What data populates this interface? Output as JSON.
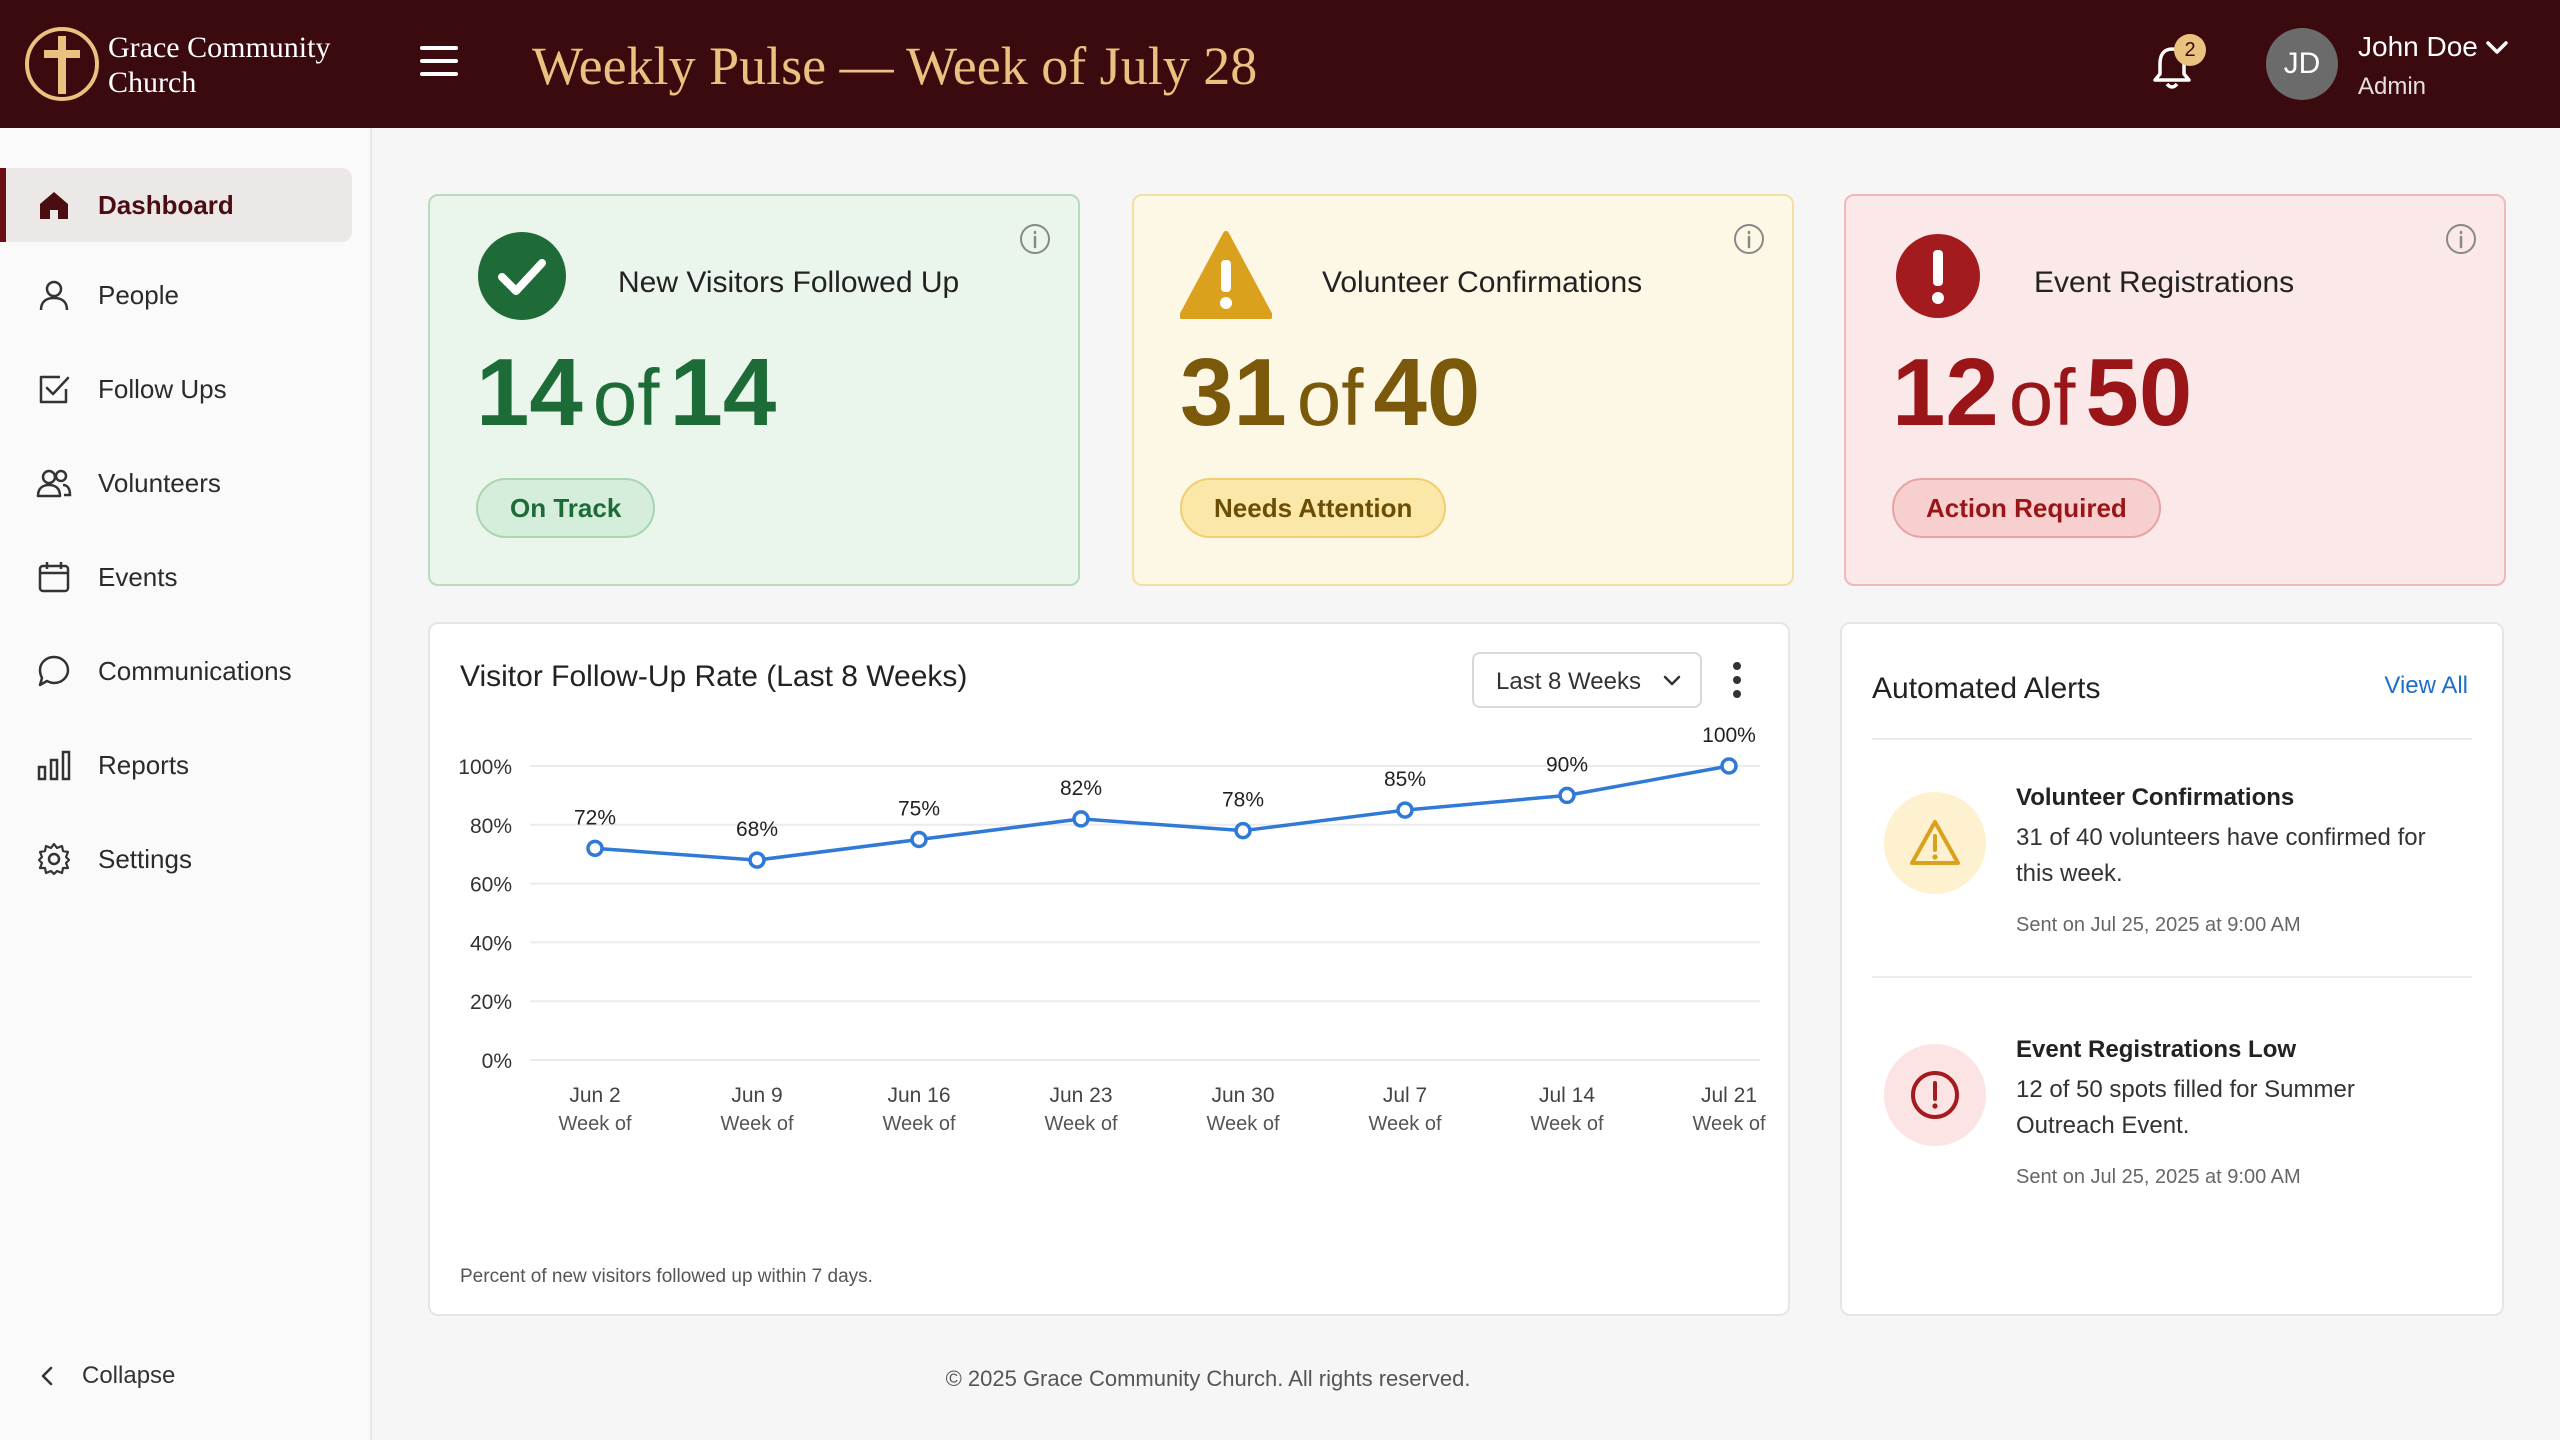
{
  "header": {
    "church_name": "Grace Community Church",
    "page_title": "Weekly Pulse — Week of July 28",
    "notification_count": "2",
    "user": {
      "initials": "JD",
      "name": "John Doe",
      "role": "Admin"
    }
  },
  "sidebar": {
    "items": [
      {
        "label": "Dashboard",
        "icon": "home-icon",
        "active": true
      },
      {
        "label": "People",
        "icon": "person-icon"
      },
      {
        "label": "Follow Ups",
        "icon": "checkbox-icon"
      },
      {
        "label": "Volunteers",
        "icon": "users-icon"
      },
      {
        "label": "Events",
        "icon": "calendar-icon"
      },
      {
        "label": "Communications",
        "icon": "chat-bubble-icon"
      },
      {
        "label": "Reports",
        "icon": "bar-chart-icon"
      },
      {
        "label": "Settings",
        "icon": "gear-icon"
      }
    ],
    "collapse_label": "Collapse"
  },
  "cards": [
    {
      "title": "New Visitors Followed Up",
      "current": "14",
      "of": "of",
      "total": "14",
      "status": "On Track",
      "color": "#1d6b36",
      "icon": "check-circle-icon"
    },
    {
      "title": "Volunteer Confirmations",
      "current": "31",
      "of": "of",
      "total": "40",
      "status": "Needs Attention",
      "color": "#d9a11e",
      "icon": "warning-triangle-icon"
    },
    {
      "title": "Event Registrations",
      "current": "12",
      "of": "of",
      "total": "50",
      "status": "Action Required",
      "color": "#a31b1f",
      "icon": "exclamation-circle-icon"
    }
  ],
  "chart": {
    "title": "Visitor Follow-Up Rate (Last 8 Weeks)",
    "range_selected": "Last 8 Weeks",
    "caption": "Percent of new visitors followed up within 7 days."
  },
  "chart_data": {
    "type": "line",
    "categories": [
      "Jun 2",
      "Jun 9",
      "Jun 16",
      "Jun 23",
      "Jun 30",
      "Jul 7",
      "Jul 14",
      "Jul 21"
    ],
    "category_sublabel": "Week of",
    "values": [
      72,
      68,
      75,
      82,
      78,
      85,
      90,
      100
    ],
    "value_labels": [
      "72%",
      "68%",
      "75%",
      "82%",
      "78%",
      "85%",
      "90%",
      "100%"
    ],
    "y_ticks": [
      "0%",
      "20%",
      "40%",
      "60%",
      "80%",
      "100%"
    ],
    "ylim": [
      0,
      100
    ],
    "grid": true,
    "line_color": "#2f7ad6"
  },
  "alerts": {
    "title": "Automated Alerts",
    "view_all": "View All",
    "items": [
      {
        "title": "Volunteer Confirmations",
        "body": "31 of 40 volunteers have confirmed for this week.",
        "time": "Sent on Jul 25, 2025 at 9:00 AM",
        "icon": "warning-triangle-icon"
      },
      {
        "title": "Event Registrations Low",
        "body": "12 of 50 spots filled for Summer Outreach Event.",
        "time": "Sent on Jul 25, 2025 at 9:00 AM",
        "icon": "exclamation-circle-icon"
      }
    ]
  },
  "footer": "© 2025 Grace Community Church. All rights reserved."
}
